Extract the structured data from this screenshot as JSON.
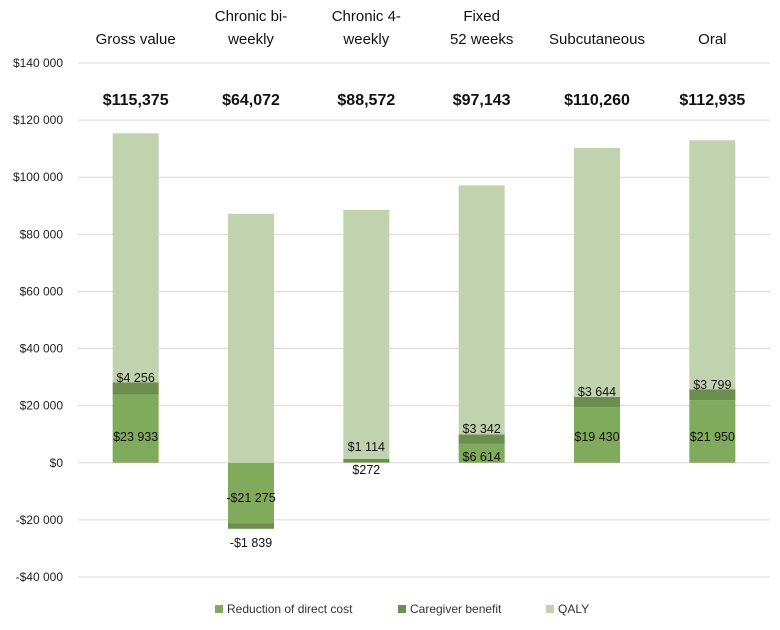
{
  "chart_data": {
    "type": "bar",
    "stacked": true,
    "categories": [
      [
        "Gross value"
      ],
      [
        "Chronic bi-",
        "weekly"
      ],
      [
        "Chronic 4-",
        "weekly"
      ],
      [
        "Fixed",
        "52 weeks"
      ],
      [
        "Subcutaneous"
      ],
      [
        "Oral"
      ]
    ],
    "totals": [
      "$115,375",
      "$64,072",
      "$88,572",
      "$97,143",
      "$110,260",
      "$112,935"
    ],
    "series": [
      {
        "name": "Reduction of direct cost",
        "color": "#80aa5c",
        "values": [
          23933,
          -21275,
          272,
          6614,
          19430,
          21950
        ],
        "labels": [
          "$23 933",
          "-$21 275",
          "$272",
          "$6 614",
          "$19 430",
          "$21 950"
        ]
      },
      {
        "name": "Caregiver benefit",
        "color": "#6b8e4e",
        "values": [
          4256,
          -1839,
          1114,
          3342,
          3644,
          3799
        ],
        "labels": [
          "$4 256",
          "-$1 839",
          "$1 114",
          "$3 342",
          "$3 644",
          "$3 799"
        ]
      },
      {
        "name": "QALY",
        "color": "#c0d3ae",
        "values": [
          87186,
          87186,
          87186,
          87187,
          87186,
          87186
        ],
        "labels": [
          "",
          "",
          "",
          "",
          "",
          ""
        ]
      }
    ],
    "yticks": [
      -40000,
      -20000,
      0,
      20000,
      40000,
      60000,
      80000,
      100000,
      120000,
      140000
    ],
    "ytick_labels": [
      "-$40 000",
      "-$20 000",
      "$0",
      "$20 000",
      "$40 000",
      "$60 000",
      "$80 000",
      "$100 000",
      "$120 000",
      "$140 000"
    ],
    "ylim": [
      -40000,
      140000
    ],
    "grid": true,
    "legend_position": "bottom"
  }
}
